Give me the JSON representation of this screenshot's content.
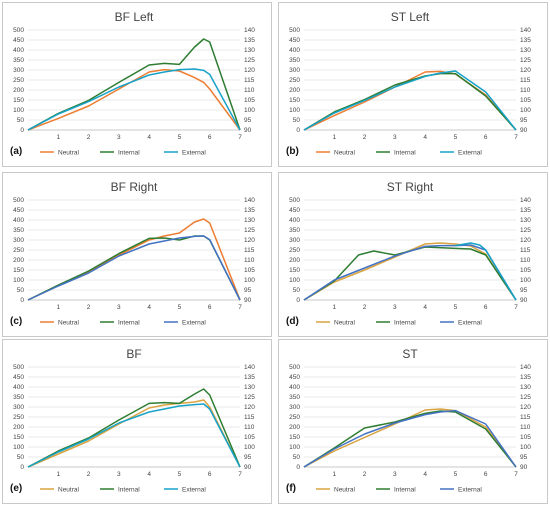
{
  "colors": {
    "orange": "#ED7D31",
    "green": "#2E7D32",
    "cyan": "#17A2C8",
    "blue": "#4472C4",
    "tan": "#D9A441",
    "frame": "#C9C9C9",
    "grid": "#E3E3E3"
  },
  "chart_data": [
    {
      "panel": "(a)",
      "type": "line",
      "title": "BF Left",
      "x_ticks": [
        1,
        2,
        3,
        4,
        5,
        6,
        7
      ],
      "y_ticks": [
        0,
        50,
        100,
        150,
        200,
        250,
        300,
        350,
        400,
        450,
        500
      ],
      "y2_ticks": [
        90,
        95,
        100,
        105,
        110,
        115,
        120,
        125,
        130,
        135,
        140
      ],
      "xlim": [
        0,
        7
      ],
      "ylim": [
        0,
        500
      ],
      "y2lim": [
        90,
        140
      ],
      "grid": true,
      "legend": "bottom",
      "series": [
        {
          "name": "Neutral",
          "color": "orange",
          "x": [
            0,
            1,
            2,
            3,
            4,
            4.5,
            5,
            5.5,
            5.8,
            6,
            7
          ],
          "y": [
            0,
            58,
            120,
            205,
            290,
            302,
            295,
            262,
            238,
            205,
            0
          ]
        },
        {
          "name": "Internal",
          "color": "green",
          "x": [
            0,
            1,
            2,
            3,
            4,
            4.5,
            5,
            5.5,
            5.8,
            6,
            7
          ],
          "y": [
            0,
            83,
            148,
            238,
            325,
            333,
            328,
            415,
            455,
            440,
            0
          ]
        },
        {
          "name": "External",
          "color": "cyan",
          "x": [
            0,
            1,
            2,
            3,
            4,
            4.5,
            5,
            5.5,
            5.8,
            6,
            7
          ],
          "y": [
            0,
            80,
            142,
            215,
            275,
            290,
            302,
            305,
            298,
            278,
            0
          ]
        }
      ]
    },
    {
      "panel": "(b)",
      "type": "line",
      "title": "ST Left",
      "x_ticks": [
        1,
        2,
        3,
        4,
        5,
        6,
        7
      ],
      "y_ticks": [
        0,
        50,
        100,
        150,
        200,
        250,
        300,
        350,
        400,
        450,
        500
      ],
      "y2_ticks": [
        90,
        95,
        100,
        105,
        110,
        115,
        120,
        125,
        130,
        135,
        140
      ],
      "xlim": [
        0,
        7
      ],
      "ylim": [
        0,
        500
      ],
      "y2lim": [
        90,
        140
      ],
      "grid": true,
      "legend": "bottom",
      "series": [
        {
          "name": "Neutral",
          "color": "orange",
          "x": [
            0,
            1,
            2,
            3,
            4,
            4.5,
            5,
            6,
            7
          ],
          "y": [
            0,
            72,
            140,
            215,
            290,
            293,
            280,
            175,
            0
          ]
        },
        {
          "name": "Internal",
          "color": "green",
          "x": [
            0,
            1,
            2,
            3,
            4,
            4.5,
            5,
            6,
            7
          ],
          "y": [
            0,
            90,
            152,
            225,
            270,
            282,
            282,
            170,
            0
          ]
        },
        {
          "name": "External",
          "color": "cyan",
          "x": [
            0,
            1,
            2,
            3,
            4,
            4.5,
            5,
            6,
            7
          ],
          "y": [
            0,
            85,
            148,
            215,
            268,
            285,
            295,
            190,
            0
          ]
        }
      ]
    },
    {
      "panel": "(c)",
      "type": "line",
      "title": "BF Right",
      "x_ticks": [
        1,
        2,
        3,
        4,
        5,
        6,
        7
      ],
      "y_ticks": [
        0,
        50,
        100,
        150,
        200,
        250,
        300,
        350,
        400,
        450,
        500
      ],
      "y2_ticks": [
        90,
        95,
        100,
        105,
        110,
        115,
        120,
        125,
        130,
        135,
        140
      ],
      "xlim": [
        0,
        7
      ],
      "ylim": [
        0,
        500
      ],
      "y2lim": [
        90,
        140
      ],
      "grid": true,
      "legend": "bottom",
      "series": [
        {
          "name": "Neutral",
          "color": "orange",
          "x": [
            0,
            1,
            2,
            3,
            4,
            4.5,
            5,
            5.5,
            5.8,
            6,
            7
          ],
          "y": [
            0,
            72,
            140,
            225,
            300,
            320,
            335,
            390,
            405,
            385,
            0
          ]
        },
        {
          "name": "Internal",
          "color": "green",
          "x": [
            0,
            1,
            2,
            3,
            4,
            4.5,
            5,
            5.5,
            5.8,
            6,
            7
          ],
          "y": [
            0,
            75,
            145,
            232,
            308,
            310,
            300,
            320,
            320,
            300,
            0
          ]
        },
        {
          "name": "External",
          "color": "blue",
          "x": [
            0,
            1,
            2,
            3,
            4,
            4.5,
            5,
            5.5,
            5.8,
            6,
            7
          ],
          "y": [
            0,
            70,
            135,
            220,
            280,
            295,
            310,
            318,
            320,
            302,
            0
          ]
        }
      ]
    },
    {
      "panel": "(d)",
      "type": "line",
      "title": "ST Right",
      "x_ticks": [
        1,
        2,
        3,
        4,
        5,
        6,
        7
      ],
      "y_ticks": [
        0,
        50,
        100,
        150,
        200,
        250,
        300,
        350,
        400,
        450,
        500
      ],
      "y2_ticks": [
        90,
        95,
        100,
        105,
        110,
        115,
        120,
        125,
        130,
        135,
        140
      ],
      "xlim": [
        0,
        7
      ],
      "ylim": [
        0,
        500
      ],
      "y2lim": [
        90,
        140
      ],
      "grid": true,
      "legend": "bottom",
      "series": [
        {
          "name": "Neutral",
          "color": "tan",
          "x": [
            0,
            1,
            2,
            3,
            4,
            4.5,
            5,
            5.5,
            6,
            7
          ],
          "y": [
            0,
            90,
            150,
            215,
            280,
            285,
            280,
            270,
            230,
            0
          ]
        },
        {
          "name": "Internal",
          "color": "green",
          "x": [
            0,
            1,
            1.8,
            2.3,
            3,
            4,
            5,
            5.5,
            6,
            7
          ],
          "y": [
            0,
            95,
            225,
            245,
            225,
            265,
            258,
            255,
            225,
            0
          ]
        },
        {
          "name": "External",
          "color": "blue",
          "x": [
            0,
            1,
            2,
            3,
            4,
            4.5,
            5,
            5.5,
            6,
            7
          ],
          "y": [
            0,
            100,
            160,
            220,
            268,
            272,
            272,
            275,
            250,
            0
          ]
        },
        {
          "name": "",
          "color": "cyan",
          "x": [
            5,
            5.5,
            5.8,
            6,
            7
          ],
          "y": [
            272,
            285,
            275,
            250,
            0
          ]
        }
      ]
    },
    {
      "panel": "(e)",
      "type": "line",
      "title": "BF",
      "x_ticks": [
        1,
        2,
        3,
        4,
        5,
        6,
        7
      ],
      "y_ticks": [
        0,
        50,
        100,
        150,
        200,
        250,
        300,
        350,
        400,
        450,
        500
      ],
      "y2_ticks": [
        90,
        95,
        100,
        105,
        110,
        115,
        120,
        125,
        130,
        135,
        140
      ],
      "xlim": [
        0,
        7
      ],
      "ylim": [
        0,
        500
      ],
      "y2lim": [
        90,
        140
      ],
      "grid": true,
      "legend": "bottom",
      "series": [
        {
          "name": "Neutral",
          "color": "tan",
          "x": [
            0,
            1,
            2,
            3,
            4,
            4.5,
            5,
            5.5,
            5.8,
            6,
            7
          ],
          "y": [
            0,
            65,
            130,
            215,
            295,
            310,
            318,
            325,
            335,
            300,
            0
          ]
        },
        {
          "name": "Internal",
          "color": "green",
          "x": [
            0,
            1,
            2,
            3,
            4,
            4.5,
            5,
            5.5,
            5.8,
            6,
            7
          ],
          "y": [
            0,
            80,
            145,
            235,
            318,
            322,
            318,
            365,
            390,
            360,
            0
          ]
        },
        {
          "name": "External",
          "color": "cyan",
          "x": [
            0,
            1,
            2,
            3,
            4,
            4.5,
            5,
            5.5,
            5.8,
            6,
            7
          ],
          "y": [
            0,
            75,
            140,
            220,
            275,
            290,
            305,
            312,
            315,
            290,
            0
          ]
        }
      ]
    },
    {
      "panel": "(f)",
      "type": "line",
      "title": "ST",
      "x_ticks": [
        1,
        2,
        3,
        4,
        5,
        6,
        7
      ],
      "y_ticks": [
        0,
        50,
        100,
        150,
        200,
        250,
        300,
        350,
        400,
        450,
        500
      ],
      "y2_ticks": [
        90,
        95,
        100,
        105,
        110,
        115,
        120,
        125,
        130,
        135,
        140
      ],
      "xlim": [
        0,
        7
      ],
      "ylim": [
        0,
        500
      ],
      "y2lim": [
        90,
        140
      ],
      "grid": true,
      "legend": "bottom",
      "series": [
        {
          "name": "Neutral",
          "color": "tan",
          "x": [
            0,
            1,
            2,
            3,
            4,
            4.5,
            5,
            6,
            7
          ],
          "y": [
            0,
            80,
            148,
            215,
            285,
            290,
            282,
            200,
            0
          ]
        },
        {
          "name": "Internal",
          "color": "green",
          "x": [
            0,
            1,
            2,
            3,
            4,
            4.5,
            5,
            6,
            7
          ],
          "y": [
            0,
            95,
            195,
            225,
            268,
            280,
            275,
            190,
            0
          ]
        },
        {
          "name": "External",
          "color": "blue",
          "x": [
            0,
            1,
            2,
            3,
            4,
            4.5,
            5,
            6,
            7
          ],
          "y": [
            0,
            90,
            165,
            220,
            262,
            275,
            282,
            215,
            0
          ]
        }
      ]
    }
  ]
}
